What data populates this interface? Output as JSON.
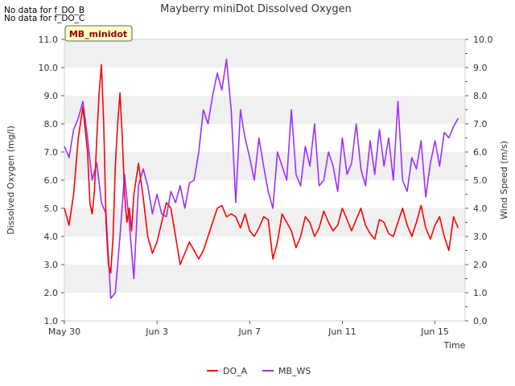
{
  "notes": [
    "No data for f_DO_B",
    "No data for f_DO_C"
  ],
  "chart_data": {
    "type": "line",
    "title": "Mayberry miniDot Dissolved Oxygen",
    "site_label": "MB_minidot",
    "xlabel": "Time",
    "ylabel_left": "Dissolved Oxygen (mg/l)",
    "ylabel_right": "Wind Speed (m/s)",
    "x_ticks": [
      "May 30",
      "Jun 3",
      "Jun 7",
      "Jun 11",
      "Jun 15"
    ],
    "x_tick_days": [
      0,
      4,
      8,
      12,
      16
    ],
    "xlim_days": [
      0,
      17.3
    ],
    "ylim_left": [
      1.0,
      11.0
    ],
    "ylim_right": [
      0.0,
      10.0
    ],
    "y_ticks_left": [
      "1.0",
      "2.0",
      "3.0",
      "4.0",
      "5.0",
      "6.0",
      "7.0",
      "8.0",
      "9.0",
      "10.0",
      "11.0"
    ],
    "y_ticks_right": [
      "0.0",
      "1.0",
      "2.0",
      "3.0",
      "4.0",
      "5.0",
      "6.0",
      "7.0",
      "8.0",
      "9.0",
      "10.0"
    ],
    "grid": "horizontal bands",
    "legend_position": "bottom",
    "colors": {
      "DO_A": "#ff0000",
      "MB_WS": "#9b30ff",
      "band": "#f0f0f0",
      "site_label_bg": "#ffffc8"
    },
    "series": [
      {
        "name": "DO_A",
        "axis": "left",
        "x": [
          0,
          0.2,
          0.4,
          0.6,
          0.8,
          1.0,
          1.1,
          1.2,
          1.3,
          1.4,
          1.5,
          1.6,
          1.7,
          1.8,
          1.9,
          2.0,
          2.1,
          2.2,
          2.3,
          2.4,
          2.5,
          2.6,
          2.7,
          2.8,
          2.9,
          3.0,
          3.2,
          3.4,
          3.6,
          3.8,
          4.0,
          4.2,
          4.4,
          4.6,
          4.8,
          5.0,
          5.2,
          5.4,
          5.6,
          5.8,
          6.0,
          6.2,
          6.4,
          6.6,
          6.8,
          7.0,
          7.2,
          7.4,
          7.6,
          7.8,
          8.0,
          8.2,
          8.4,
          8.6,
          8.8,
          9.0,
          9.2,
          9.4,
          9.6,
          9.8,
          10.0,
          10.2,
          10.4,
          10.6,
          10.8,
          11.0,
          11.2,
          11.4,
          11.6,
          11.8,
          12.0,
          12.2,
          12.4,
          12.6,
          12.8,
          13.0,
          13.2,
          13.4,
          13.6,
          13.8,
          14.0,
          14.2,
          14.4,
          14.6,
          14.8,
          15.0,
          15.2,
          15.4,
          15.6,
          15.8,
          16.0,
          16.2,
          16.4,
          16.6,
          16.8,
          17.0
        ],
        "values": [
          5.0,
          4.4,
          5.5,
          7.5,
          8.6,
          7.0,
          5.2,
          4.8,
          5.6,
          7.5,
          9.1,
          10.1,
          8.0,
          4.5,
          3.0,
          2.7,
          4.0,
          6.5,
          8.0,
          9.1,
          7.5,
          5.5,
          4.5,
          5.0,
          4.2,
          5.5,
          6.6,
          5.4,
          4.0,
          3.4,
          3.8,
          4.5,
          5.2,
          5.0,
          4.0,
          3.0,
          3.4,
          3.8,
          3.5,
          3.2,
          3.5,
          4.0,
          4.5,
          5.0,
          5.1,
          4.7,
          4.8,
          4.7,
          4.3,
          4.8,
          4.2,
          4.0,
          4.3,
          4.7,
          4.6,
          3.2,
          3.8,
          4.8,
          4.5,
          4.2,
          3.6,
          4.0,
          4.7,
          4.5,
          4.0,
          4.3,
          4.9,
          4.5,
          4.2,
          4.4,
          5.0,
          4.6,
          4.2,
          4.6,
          5.0,
          4.4,
          4.1,
          3.9,
          4.6,
          4.5,
          4.1,
          4.0,
          4.5,
          5.0,
          4.4,
          4.0,
          4.5,
          5.1,
          4.3,
          3.9,
          4.4,
          4.7,
          4.0,
          3.5,
          4.7,
          4.3
        ]
      },
      {
        "name": "MB_WS",
        "axis": "right",
        "x": [
          0,
          0.2,
          0.4,
          0.6,
          0.8,
          1.0,
          1.2,
          1.4,
          1.6,
          1.8,
          2.0,
          2.2,
          2.4,
          2.6,
          2.8,
          3.0,
          3.2,
          3.4,
          3.6,
          3.8,
          4.0,
          4.2,
          4.4,
          4.6,
          4.8,
          5.0,
          5.2,
          5.4,
          5.6,
          5.8,
          6.0,
          6.2,
          6.4,
          6.6,
          6.8,
          7.0,
          7.2,
          7.4,
          7.6,
          7.8,
          8.0,
          8.2,
          8.4,
          8.6,
          8.8,
          9.0,
          9.2,
          9.4,
          9.6,
          9.8,
          10.0,
          10.2,
          10.4,
          10.6,
          10.8,
          11.0,
          11.2,
          11.4,
          11.6,
          11.8,
          12.0,
          12.2,
          12.4,
          12.6,
          12.8,
          13.0,
          13.2,
          13.4,
          13.6,
          13.8,
          14.0,
          14.2,
          14.4,
          14.6,
          14.8,
          15.0,
          15.2,
          15.4,
          15.6,
          15.8,
          16.0,
          16.2,
          16.4,
          16.6,
          16.8,
          17.0
        ],
        "values": [
          6.2,
          5.8,
          6.8,
          7.2,
          7.8,
          6.5,
          5.0,
          5.6,
          4.2,
          3.8,
          0.8,
          1.0,
          3.0,
          5.2,
          3.5,
          1.5,
          4.8,
          5.4,
          4.8,
          3.8,
          4.5,
          3.8,
          3.7,
          4.6,
          4.2,
          4.8,
          4.0,
          4.9,
          5.0,
          6.0,
          7.5,
          7.0,
          8.0,
          8.8,
          8.2,
          9.3,
          7.5,
          4.2,
          7.5,
          6.5,
          5.8,
          5.0,
          6.5,
          5.5,
          4.6,
          4.0,
          6.0,
          5.5,
          5.0,
          7.5,
          5.2,
          4.8,
          6.2,
          5.5,
          7.0,
          4.8,
          5.0,
          6.0,
          5.5,
          4.6,
          6.5,
          5.2,
          5.6,
          7.0,
          5.4,
          4.8,
          6.4,
          5.2,
          6.8,
          5.5,
          6.5,
          5.0,
          7.8,
          5.0,
          4.6,
          5.8,
          5.4,
          6.4,
          4.4,
          5.6,
          6.4,
          5.5,
          6.7,
          6.5,
          6.9,
          7.2
        ]
      }
    ]
  }
}
